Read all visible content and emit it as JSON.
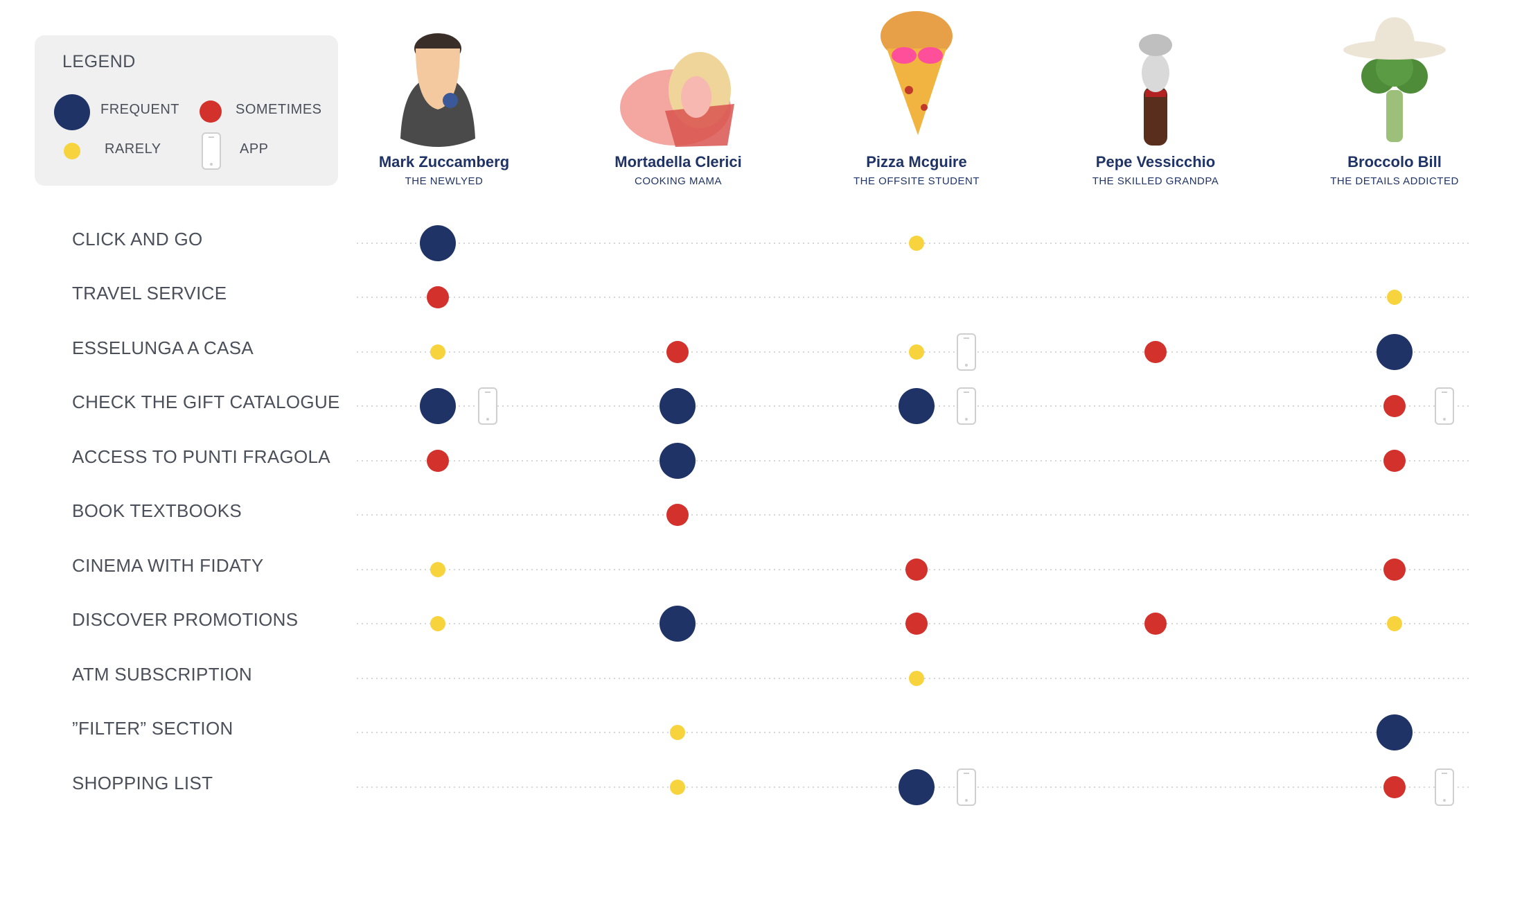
{
  "legend": {
    "title": "LEGEND",
    "frequent": "FREQUENT",
    "sometimes": "SOMETIMES",
    "rarely": "RARELY",
    "app": "APP"
  },
  "colors": {
    "frequent": "#1f3366",
    "sometimes": "#d2312c",
    "rarely": "#f7d43e",
    "app_outline": "#cfcfcf",
    "gridline": "#c8c8c8"
  },
  "personas": [
    {
      "name": "Mark Zuccamberg",
      "role": "THE NEWLYED",
      "icon": "avatar-mark-icon"
    },
    {
      "name": "Mortadella Clerici",
      "role": "COOKING MAMA",
      "icon": "avatar-mortadella-icon"
    },
    {
      "name": "Pizza Mcguire",
      "role": "THE OFFSITE STUDENT",
      "icon": "avatar-pizza-icon"
    },
    {
      "name": "Pepe Vessicchio",
      "role": "THE SKILLED GRANDPA",
      "icon": "avatar-pepper-icon"
    },
    {
      "name": "Broccolo Bill",
      "role": "THE DETAILS ADDICTED",
      "icon": "avatar-broccoli-icon"
    }
  ],
  "chart_data": {
    "type": "dot-matrix",
    "categories": [
      "CLICK AND GO",
      "TRAVEL SERVICE",
      "ESSELUNGA A CASA",
      "CHECK THE GIFT CATALOGUE",
      "ACCESS TO PUNTI FRAGOLA",
      "BOOK TEXTBOOKS",
      "CINEMA WITH FIDATY",
      "DISCOVER PROMOTIONS",
      "ATM SUBSCRIPTION",
      "”FILTER” SECTION",
      "SHOPPING LIST"
    ],
    "columns": [
      "Mark Zuccamberg",
      "Mortadella Clerici",
      "Pizza Mcguire",
      "Pepe Vessicchio",
      "Broccolo Bill"
    ],
    "usage": [
      [
        "frequent",
        null,
        "rarely",
        null,
        null
      ],
      [
        "sometimes",
        null,
        null,
        null,
        "rarely"
      ],
      [
        "rarely",
        "sometimes",
        "rarely",
        "sometimes",
        "frequent"
      ],
      [
        "frequent",
        "frequent",
        "frequent",
        null,
        "sometimes"
      ],
      [
        "sometimes",
        "frequent",
        null,
        null,
        "sometimes"
      ],
      [
        null,
        "sometimes",
        null,
        null,
        null
      ],
      [
        "rarely",
        null,
        "sometimes",
        null,
        "sometimes"
      ],
      [
        "rarely",
        "frequent",
        "sometimes",
        "sometimes",
        "rarely"
      ],
      [
        null,
        null,
        "rarely",
        null,
        null
      ],
      [
        null,
        "rarely",
        null,
        null,
        "frequent"
      ],
      [
        null,
        "rarely",
        "frequent",
        null,
        "sometimes"
      ]
    ],
    "app": [
      [
        false,
        false,
        false,
        false,
        false
      ],
      [
        false,
        false,
        false,
        false,
        false
      ],
      [
        false,
        false,
        true,
        false,
        false
      ],
      [
        true,
        false,
        true,
        false,
        true
      ],
      [
        false,
        false,
        false,
        false,
        false
      ],
      [
        false,
        false,
        false,
        false,
        false
      ],
      [
        false,
        false,
        false,
        false,
        false
      ],
      [
        false,
        false,
        false,
        false,
        false
      ],
      [
        false,
        false,
        false,
        false,
        false
      ],
      [
        false,
        false,
        false,
        false,
        false
      ],
      [
        false,
        false,
        true,
        false,
        true
      ]
    ]
  }
}
